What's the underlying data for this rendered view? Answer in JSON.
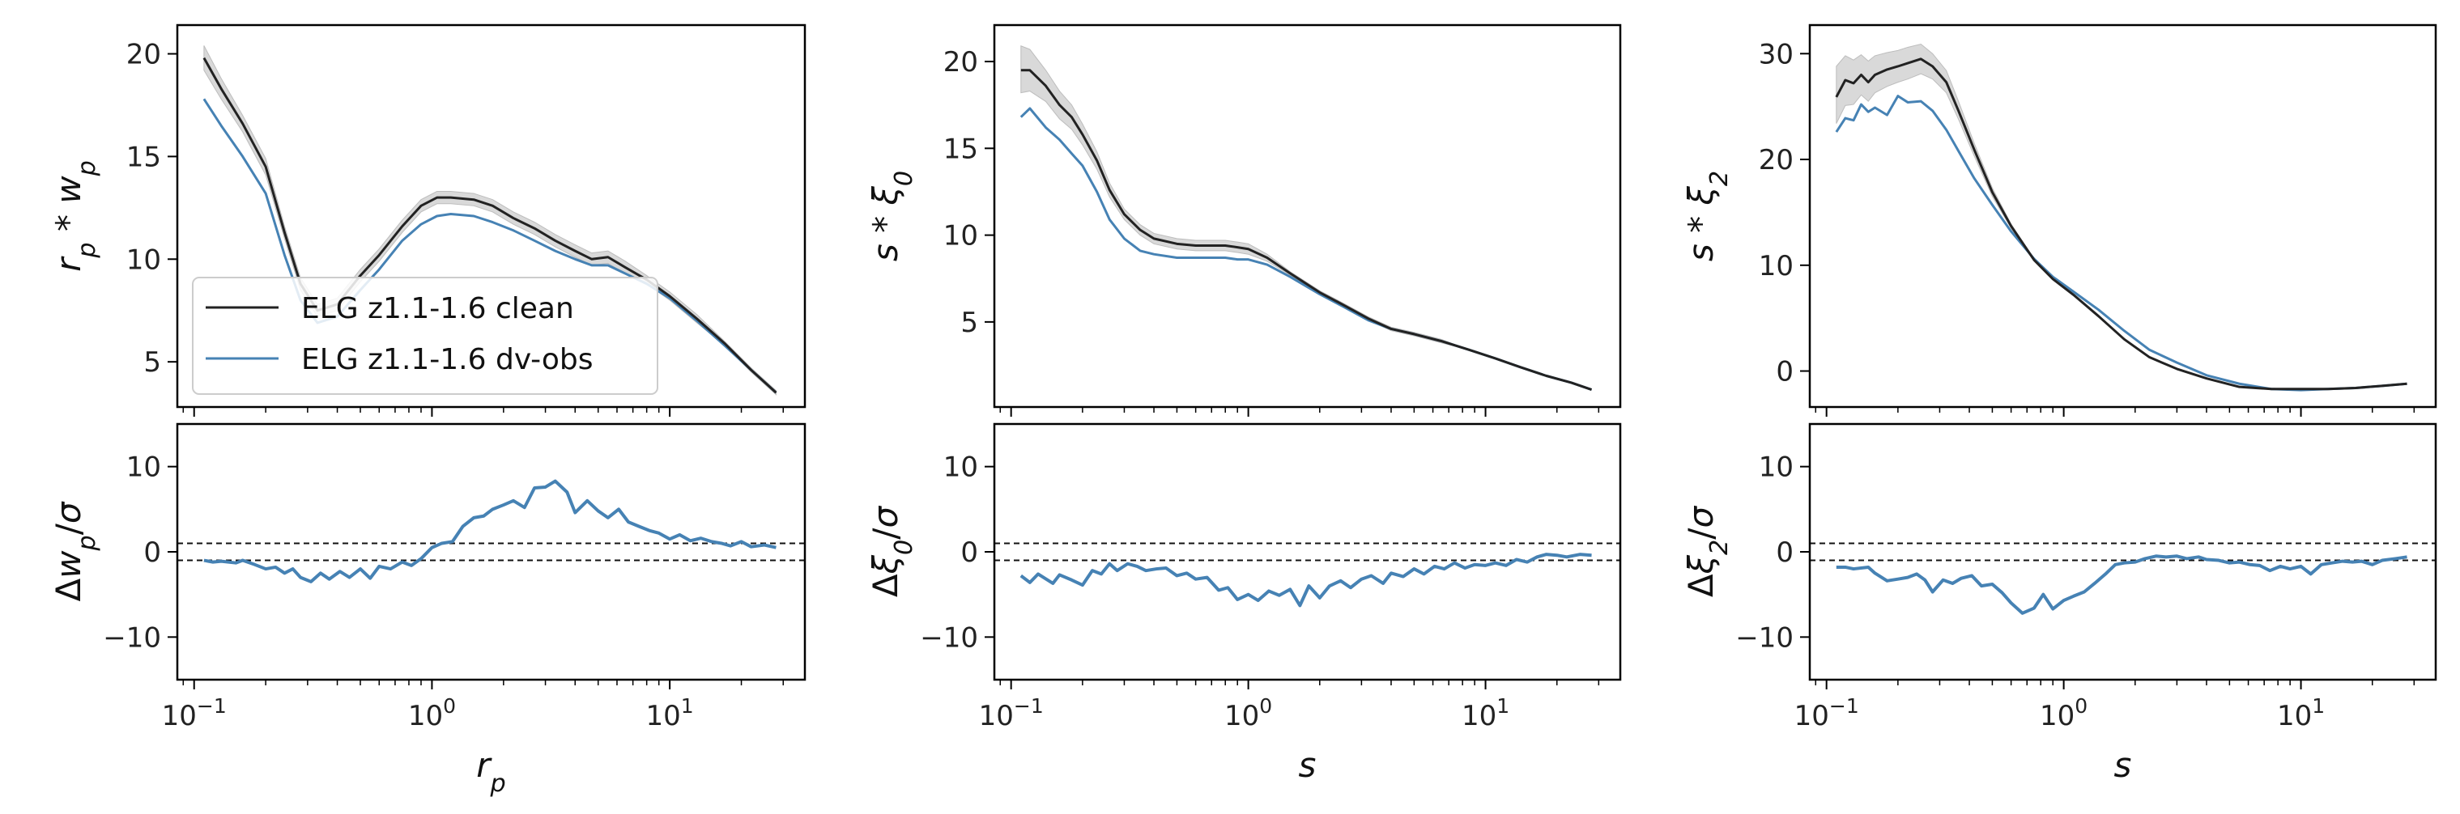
{
  "chart_data": [
    {
      "type": "line",
      "panel": "top-left",
      "ylabel": "r_p * w_p",
      "xscale": "log",
      "xlim": [
        0.085,
        37
      ],
      "ylim": [
        2.8,
        21.4
      ],
      "yticks": [
        5,
        10,
        15,
        20
      ],
      "legend": {
        "placement": "lower-left"
      },
      "series": [
        {
          "name": "ELG z1.1-1.6 clean",
          "color": "#222222",
          "band_color": "#d9d9d9",
          "x": [
            0.11,
            0.13,
            0.16,
            0.2,
            0.24,
            0.28,
            0.33,
            0.4,
            0.5,
            0.6,
            0.75,
            0.9,
            1.05,
            1.2,
            1.5,
            1.8,
            2.2,
            2.7,
            3.3,
            4.0,
            4.7,
            5.5,
            6.5,
            8.0,
            10.0,
            13.0,
            17.0,
            22.0,
            28.0
          ],
          "y": [
            19.8,
            18.3,
            16.6,
            14.5,
            11.3,
            8.8,
            7.5,
            7.8,
            9.2,
            10.2,
            11.6,
            12.6,
            13.0,
            13.0,
            12.9,
            12.6,
            12.0,
            11.5,
            10.9,
            10.4,
            10.0,
            10.1,
            9.6,
            9.0,
            8.2,
            7.1,
            5.9,
            4.6,
            3.5
          ],
          "band_lower": [
            19.2,
            17.8,
            16.2,
            14.1,
            11.0,
            8.5,
            7.2,
            7.5,
            8.9,
            9.9,
            11.3,
            12.3,
            12.7,
            12.7,
            12.6,
            12.3,
            11.7,
            11.2,
            10.6,
            10.1,
            9.7,
            9.8,
            9.3,
            8.8,
            8.0,
            6.9,
            5.8,
            4.5,
            3.4
          ],
          "band_upper": [
            20.4,
            18.8,
            17.0,
            14.9,
            11.6,
            9.1,
            7.8,
            8.1,
            9.5,
            10.5,
            11.9,
            12.9,
            13.3,
            13.3,
            13.2,
            12.9,
            12.3,
            11.8,
            11.2,
            10.7,
            10.3,
            10.4,
            9.9,
            9.2,
            8.4,
            7.3,
            6.0,
            4.7,
            3.6
          ]
        },
        {
          "name": "ELG z1.1-1.6 dv-obs",
          "color": "#4682b4",
          "x": [
            0.11,
            0.13,
            0.16,
            0.2,
            0.24,
            0.28,
            0.33,
            0.4,
            0.5,
            0.6,
            0.75,
            0.9,
            1.05,
            1.2,
            1.5,
            1.8,
            2.2,
            2.7,
            3.3,
            4.0,
            4.7,
            5.5,
            6.5,
            8.0,
            10.0,
            13.0,
            17.0,
            22.0,
            28.0
          ],
          "y": [
            17.8,
            16.5,
            15.0,
            13.2,
            10.2,
            8.0,
            6.9,
            7.2,
            8.5,
            9.5,
            10.9,
            11.7,
            12.1,
            12.2,
            12.1,
            11.8,
            11.4,
            10.9,
            10.4,
            10.0,
            9.7,
            9.7,
            9.3,
            8.8,
            8.1,
            7.0,
            5.8,
            4.6,
            3.5
          ]
        }
      ]
    },
    {
      "type": "line",
      "panel": "bottom-left",
      "xlabel": "r_p",
      "ylabel": "Δw_p/σ",
      "xscale": "log",
      "xlim": [
        0.085,
        37
      ],
      "ylim": [
        -15,
        15
      ],
      "yticks": [
        -10,
        0,
        10
      ],
      "xticks": [
        0.1,
        1,
        10
      ],
      "hlines": [
        -1,
        1
      ],
      "series": [
        {
          "color": "#4682b4",
          "x": [
            0.11,
            0.12,
            0.13,
            0.15,
            0.16,
            0.18,
            0.2,
            0.22,
            0.24,
            0.26,
            0.28,
            0.31,
            0.34,
            0.37,
            0.41,
            0.45,
            0.5,
            0.55,
            0.6,
            0.67,
            0.75,
            0.82,
            0.9,
            1.0,
            1.1,
            1.22,
            1.35,
            1.5,
            1.65,
            1.8,
            2.0,
            2.2,
            2.45,
            2.7,
            3.0,
            3.3,
            3.7,
            4.0,
            4.5,
            5.0,
            5.5,
            6.1,
            6.7,
            7.4,
            8.2,
            9.0,
            10.0,
            11.0,
            12.2,
            13.5,
            15.0,
            16.5,
            18.0,
            20.0,
            22.0,
            25.0,
            28.0
          ],
          "y": [
            -1.0,
            -1.2,
            -1.1,
            -1.3,
            -1.0,
            -1.5,
            -2.0,
            -1.8,
            -2.5,
            -2.0,
            -3.0,
            -3.5,
            -2.5,
            -3.2,
            -2.3,
            -3.0,
            -2.0,
            -3.1,
            -1.7,
            -2.0,
            -1.2,
            -1.6,
            -0.8,
            0.5,
            1.0,
            1.2,
            3.0,
            4.0,
            4.2,
            5.0,
            5.5,
            6.0,
            5.2,
            7.5,
            7.6,
            8.3,
            7.0,
            4.6,
            6.0,
            4.8,
            4.0,
            5.0,
            3.5,
            3.0,
            2.5,
            2.2,
            1.5,
            2.0,
            1.3,
            1.6,
            1.2,
            1.0,
            0.7,
            1.2,
            0.6,
            0.8,
            0.5
          ]
        }
      ]
    },
    {
      "type": "line",
      "panel": "top-middle",
      "ylabel": "s * ξ_0",
      "xscale": "log",
      "xlim": [
        0.085,
        37
      ],
      "ylim": [
        0.1,
        22.1
      ],
      "yticks": [
        5,
        10,
        15,
        20
      ],
      "series": [
        {
          "name": "ELG z1.1-1.6 clean",
          "color": "#222222",
          "band_color": "#d9d9d9",
          "x": [
            0.11,
            0.12,
            0.14,
            0.16,
            0.18,
            0.2,
            0.23,
            0.26,
            0.3,
            0.35,
            0.4,
            0.5,
            0.6,
            0.7,
            0.8,
            0.9,
            1.0,
            1.2,
            1.5,
            2.0,
            2.5,
            3.2,
            4.0,
            5.0,
            6.5,
            8.5,
            11.0,
            14.0,
            18.0,
            23.0,
            28.0
          ],
          "y": [
            19.5,
            19.5,
            18.6,
            17.5,
            16.8,
            15.8,
            14.3,
            12.6,
            11.2,
            10.3,
            9.8,
            9.5,
            9.4,
            9.4,
            9.4,
            9.3,
            9.2,
            8.7,
            7.8,
            6.7,
            6.0,
            5.2,
            4.6,
            4.3,
            3.9,
            3.4,
            2.9,
            2.4,
            1.9,
            1.5,
            1.1
          ],
          "band_lower": [
            18.2,
            18.3,
            17.7,
            16.7,
            16.1,
            15.2,
            13.8,
            12.2,
            10.9,
            10.0,
            9.5,
            9.2,
            9.1,
            9.1,
            9.1,
            9.0,
            8.9,
            8.5,
            7.7,
            6.6,
            5.9,
            5.1,
            4.5,
            4.2,
            3.8,
            3.4,
            2.9,
            2.4,
            1.9,
            1.5,
            1.1
          ],
          "band_upper": [
            20.9,
            20.7,
            19.5,
            18.3,
            17.5,
            16.4,
            14.8,
            13.0,
            11.5,
            10.6,
            10.1,
            9.8,
            9.7,
            9.7,
            9.7,
            9.6,
            9.5,
            8.9,
            7.9,
            6.8,
            6.1,
            5.3,
            4.7,
            4.4,
            4.0,
            3.4,
            2.9,
            2.4,
            1.9,
            1.5,
            1.1
          ]
        },
        {
          "name": "ELG z1.1-1.6 dv-obs",
          "color": "#4682b4",
          "x": [
            0.11,
            0.12,
            0.14,
            0.16,
            0.18,
            0.2,
            0.23,
            0.26,
            0.3,
            0.35,
            0.4,
            0.5,
            0.6,
            0.7,
            0.8,
            0.9,
            1.0,
            1.2,
            1.5,
            2.0,
            2.5,
            3.2,
            4.0,
            5.0,
            6.5,
            8.5,
            11.0,
            14.0,
            18.0,
            23.0,
            28.0
          ],
          "y": [
            16.8,
            17.3,
            16.2,
            15.5,
            14.7,
            14.0,
            12.5,
            10.9,
            9.8,
            9.1,
            8.9,
            8.7,
            8.7,
            8.7,
            8.7,
            8.6,
            8.6,
            8.3,
            7.6,
            6.6,
            5.9,
            5.1,
            4.6,
            4.3,
            3.9,
            3.4,
            2.9,
            2.4,
            1.9,
            1.5,
            1.1
          ]
        }
      ]
    },
    {
      "type": "line",
      "panel": "bottom-middle",
      "xlabel": "s",
      "ylabel": "Δξ_0/σ",
      "xscale": "log",
      "xlim": [
        0.085,
        37
      ],
      "ylim": [
        -15,
        15
      ],
      "yticks": [
        -10,
        0,
        10
      ],
      "xticks": [
        0.1,
        1,
        10
      ],
      "hlines": [
        -1,
        1
      ],
      "series": [
        {
          "color": "#4682b4",
          "x": [
            0.11,
            0.12,
            0.13,
            0.15,
            0.16,
            0.18,
            0.2,
            0.22,
            0.24,
            0.26,
            0.28,
            0.31,
            0.34,
            0.37,
            0.41,
            0.45,
            0.5,
            0.55,
            0.6,
            0.67,
            0.75,
            0.82,
            0.9,
            1.0,
            1.1,
            1.22,
            1.35,
            1.5,
            1.65,
            1.8,
            2.0,
            2.2,
            2.45,
            2.7,
            3.0,
            3.3,
            3.7,
            4.0,
            4.5,
            5.0,
            5.5,
            6.1,
            6.7,
            7.4,
            8.2,
            9.0,
            10.0,
            11.0,
            12.2,
            13.5,
            15.0,
            16.5,
            18.0,
            20.0,
            22.0,
            25.0,
            28.0
          ],
          "y": [
            -2.8,
            -3.6,
            -2.6,
            -3.7,
            -2.7,
            -3.3,
            -3.9,
            -2.2,
            -2.6,
            -1.4,
            -2.2,
            -1.4,
            -1.7,
            -2.2,
            -2.0,
            -1.9,
            -2.8,
            -2.5,
            -3.2,
            -3.0,
            -4.5,
            -4.2,
            -5.6,
            -5.0,
            -5.7,
            -4.6,
            -5.1,
            -4.4,
            -6.3,
            -4.0,
            -5.4,
            -4.0,
            -3.4,
            -4.2,
            -3.2,
            -2.8,
            -3.7,
            -2.5,
            -2.9,
            -2.0,
            -2.6,
            -1.7,
            -2.0,
            -1.3,
            -1.9,
            -1.5,
            -1.6,
            -1.3,
            -1.6,
            -0.9,
            -1.2,
            -0.6,
            -0.3,
            -0.4,
            -0.6,
            -0.3,
            -0.4
          ]
        }
      ]
    },
    {
      "type": "line",
      "panel": "top-right",
      "ylabel": "s * ξ_2",
      "xscale": "log",
      "xlim": [
        0.085,
        37
      ],
      "ylim": [
        -3.4,
        32.7
      ],
      "yticks": [
        0,
        10,
        20,
        30
      ],
      "series": [
        {
          "name": "ELG z1.1-1.6 clean",
          "color": "#222222",
          "band_color": "#d9d9d9",
          "x": [
            0.11,
            0.12,
            0.13,
            0.14,
            0.15,
            0.16,
            0.18,
            0.2,
            0.22,
            0.25,
            0.28,
            0.32,
            0.36,
            0.42,
            0.5,
            0.6,
            0.75,
            0.9,
            1.1,
            1.4,
            1.8,
            2.3,
            3.0,
            4.0,
            5.5,
            7.5,
            10.0,
            13.0,
            17.0,
            22.0,
            28.0
          ],
          "y": [
            25.9,
            27.5,
            27.2,
            28.0,
            27.3,
            28.0,
            28.5,
            28.8,
            29.1,
            29.5,
            28.8,
            27.3,
            24.6,
            20.9,
            16.9,
            13.7,
            10.5,
            8.7,
            7.2,
            5.2,
            3.0,
            1.3,
            0.2,
            -0.7,
            -1.5,
            -1.7,
            -1.7,
            -1.7,
            -1.6,
            -1.4,
            -1.2
          ],
          "band_lower": [
            23.4,
            25.1,
            25.2,
            26.1,
            25.5,
            26.3,
            26.9,
            27.3,
            27.6,
            28.1,
            27.6,
            26.3,
            23.8,
            20.3,
            16.5,
            13.5,
            10.4,
            8.6,
            7.1,
            5.1,
            3.0,
            1.3,
            0.2,
            -0.7,
            -1.5,
            -1.7,
            -1.7,
            -1.7,
            -1.6,
            -1.4,
            -1.2
          ],
          "band_upper": [
            28.8,
            29.8,
            29.4,
            29.9,
            29.3,
            29.8,
            30.1,
            30.3,
            30.6,
            30.9,
            30.0,
            28.4,
            25.5,
            21.5,
            17.3,
            13.9,
            10.6,
            8.8,
            7.3,
            5.3,
            3.0,
            1.3,
            0.2,
            -0.7,
            -1.5,
            -1.7,
            -1.7,
            -1.7,
            -1.6,
            -1.4,
            -1.2
          ]
        },
        {
          "name": "ELG z1.1-1.6 dv-obs",
          "color": "#4682b4",
          "x": [
            0.11,
            0.12,
            0.13,
            0.14,
            0.15,
            0.16,
            0.18,
            0.2,
            0.22,
            0.25,
            0.28,
            0.32,
            0.36,
            0.42,
            0.5,
            0.6,
            0.75,
            0.9,
            1.1,
            1.4,
            1.8,
            2.3,
            3.0,
            4.0,
            5.5,
            7.5,
            10.0,
            13.0,
            17.0,
            22.0,
            28.0
          ],
          "y": [
            22.6,
            23.9,
            23.7,
            25.2,
            24.5,
            24.9,
            24.2,
            26.0,
            25.4,
            25.5,
            24.6,
            22.8,
            20.8,
            18.2,
            15.7,
            13.2,
            10.6,
            8.9,
            7.5,
            5.8,
            3.8,
            2.0,
            0.8,
            -0.4,
            -1.2,
            -1.7,
            -1.8,
            -1.7,
            -1.6,
            -1.4,
            -1.2
          ]
        }
      ]
    },
    {
      "type": "line",
      "panel": "bottom-right",
      "xlabel": "s",
      "ylabel": "Δξ_2/σ",
      "xscale": "log",
      "xlim": [
        0.085,
        37
      ],
      "ylim": [
        -15,
        15
      ],
      "yticks": [
        -10,
        0,
        10
      ],
      "xticks": [
        0.1,
        1,
        10
      ],
      "hlines": [
        -1,
        1
      ],
      "series": [
        {
          "color": "#4682b4",
          "x": [
            0.11,
            0.12,
            0.13,
            0.15,
            0.16,
            0.18,
            0.2,
            0.22,
            0.24,
            0.26,
            0.28,
            0.31,
            0.34,
            0.37,
            0.41,
            0.45,
            0.5,
            0.55,
            0.6,
            0.67,
            0.75,
            0.82,
            0.9,
            1.0,
            1.1,
            1.22,
            1.35,
            1.5,
            1.65,
            1.8,
            2.0,
            2.2,
            2.45,
            2.7,
            3.0,
            3.3,
            3.7,
            4.0,
            4.5,
            5.0,
            5.5,
            6.1,
            6.7,
            7.4,
            8.2,
            9.0,
            10.0,
            11.0,
            12.2,
            13.5,
            15.0,
            16.5,
            18.0,
            20.0,
            22.0,
            25.0,
            28.0
          ],
          "y": [
            -1.8,
            -1.8,
            -2.0,
            -1.8,
            -2.5,
            -3.4,
            -3.2,
            -3.0,
            -2.6,
            -3.3,
            -4.7,
            -3.3,
            -3.7,
            -3.1,
            -2.8,
            -4.0,
            -3.8,
            -4.8,
            -6.0,
            -7.2,
            -6.6,
            -5.0,
            -6.7,
            -5.7,
            -5.2,
            -4.7,
            -3.7,
            -2.6,
            -1.5,
            -1.3,
            -1.2,
            -0.8,
            -0.5,
            -0.6,
            -0.5,
            -0.8,
            -0.6,
            -0.9,
            -1.0,
            -1.3,
            -1.2,
            -1.5,
            -1.6,
            -2.2,
            -1.7,
            -2.0,
            -1.7,
            -2.6,
            -1.5,
            -1.3,
            -1.1,
            -1.2,
            -1.1,
            -1.5,
            -1.0,
            -0.8,
            -0.6
          ]
        }
      ]
    }
  ]
}
